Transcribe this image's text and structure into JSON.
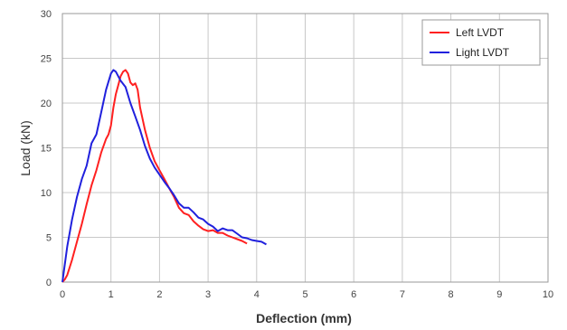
{
  "chart_data": {
    "type": "line",
    "title": "",
    "xlabel": "Deflection (mm)",
    "ylabel": "Load (kN)",
    "xlim": [
      0,
      10
    ],
    "ylim": [
      0,
      30
    ],
    "x_ticks": [
      "0",
      "1",
      "2",
      "3",
      "4",
      "5",
      "6",
      "7",
      "8",
      "9",
      "10"
    ],
    "y_ticks": [
      "0",
      "5",
      "10",
      "15",
      "20",
      "25",
      "30"
    ],
    "grid": true,
    "legend_position": "top-right",
    "series": [
      {
        "name": "Left LVDT",
        "color": "#ff2020",
        "points": [
          [
            0,
            0
          ],
          [
            0.05,
            0.3
          ],
          [
            0.1,
            0.8
          ],
          [
            0.2,
            2.5
          ],
          [
            0.3,
            4.5
          ],
          [
            0.4,
            6.5
          ],
          [
            0.5,
            8.7
          ],
          [
            0.6,
            10.8
          ],
          [
            0.7,
            12.5
          ],
          [
            0.8,
            14.5
          ],
          [
            0.9,
            16.0
          ],
          [
            0.95,
            16.5
          ],
          [
            1.0,
            17.5
          ],
          [
            1.05,
            19.5
          ],
          [
            1.1,
            21.0
          ],
          [
            1.15,
            22.0
          ],
          [
            1.2,
            23.0
          ],
          [
            1.25,
            23.5
          ],
          [
            1.3,
            23.7
          ],
          [
            1.35,
            23.3
          ],
          [
            1.4,
            22.3
          ],
          [
            1.45,
            22.0
          ],
          [
            1.5,
            22.2
          ],
          [
            1.55,
            21.5
          ],
          [
            1.6,
            19.5
          ],
          [
            1.7,
            17.0
          ],
          [
            1.8,
            15.0
          ],
          [
            1.9,
            13.5
          ],
          [
            2.0,
            12.5
          ],
          [
            2.1,
            11.5
          ],
          [
            2.2,
            10.5
          ],
          [
            2.3,
            9.5
          ],
          [
            2.4,
            8.3
          ],
          [
            2.5,
            7.7
          ],
          [
            2.6,
            7.5
          ],
          [
            2.7,
            6.8
          ],
          [
            2.8,
            6.3
          ],
          [
            2.9,
            5.9
          ],
          [
            3.0,
            5.7
          ],
          [
            3.1,
            5.8
          ],
          [
            3.2,
            5.5
          ],
          [
            3.3,
            5.5
          ],
          [
            3.4,
            5.2
          ],
          [
            3.5,
            5.0
          ],
          [
            3.6,
            4.8
          ],
          [
            3.7,
            4.6
          ],
          [
            3.8,
            4.3
          ]
        ]
      },
      {
        "name": "Light LVDT",
        "color": "#2020dd",
        "points": [
          [
            0,
            0
          ],
          [
            0.05,
            2.0
          ],
          [
            0.1,
            4.0
          ],
          [
            0.2,
            7.0
          ],
          [
            0.3,
            9.5
          ],
          [
            0.4,
            11.5
          ],
          [
            0.5,
            13.0
          ],
          [
            0.6,
            15.5
          ],
          [
            0.7,
            16.5
          ],
          [
            0.8,
            19.0
          ],
          [
            0.9,
            21.5
          ],
          [
            1.0,
            23.3
          ],
          [
            1.05,
            23.7
          ],
          [
            1.1,
            23.5
          ],
          [
            1.2,
            22.5
          ],
          [
            1.3,
            21.8
          ],
          [
            1.4,
            20.0
          ],
          [
            1.5,
            18.5
          ],
          [
            1.6,
            17.0
          ],
          [
            1.7,
            15.2
          ],
          [
            1.8,
            13.8
          ],
          [
            1.9,
            12.8
          ],
          [
            2.0,
            12.0
          ],
          [
            2.1,
            11.2
          ],
          [
            2.2,
            10.5
          ],
          [
            2.3,
            9.7
          ],
          [
            2.4,
            8.8
          ],
          [
            2.5,
            8.3
          ],
          [
            2.6,
            8.3
          ],
          [
            2.7,
            7.8
          ],
          [
            2.8,
            7.2
          ],
          [
            2.9,
            7.0
          ],
          [
            3.0,
            6.5
          ],
          [
            3.1,
            6.2
          ],
          [
            3.2,
            5.7
          ],
          [
            3.3,
            6.0
          ],
          [
            3.4,
            5.8
          ],
          [
            3.5,
            5.8
          ],
          [
            3.6,
            5.4
          ],
          [
            3.7,
            5.0
          ],
          [
            3.8,
            4.9
          ],
          [
            3.9,
            4.7
          ],
          [
            4.0,
            4.6
          ],
          [
            4.1,
            4.5
          ],
          [
            4.2,
            4.2
          ]
        ]
      }
    ]
  }
}
